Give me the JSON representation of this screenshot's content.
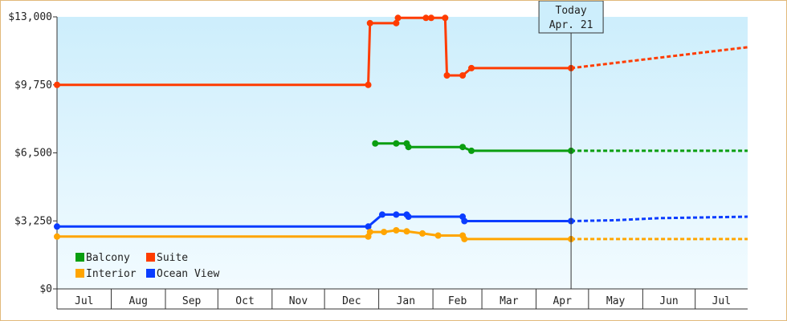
{
  "chart_data": {
    "type": "line",
    "title": "",
    "xlabel": "",
    "ylabel": "",
    "y_unit": "USD",
    "ylim": [
      0,
      13000
    ],
    "yticks": [
      {
        "value": 0,
        "label": "$0"
      },
      {
        "value": 3250,
        "label": "$3,250"
      },
      {
        "value": 6500,
        "label": "$6,500"
      },
      {
        "value": 9750,
        "label": "$9,750"
      },
      {
        "value": 13000,
        "label": "$13,000"
      }
    ],
    "x_axis": {
      "start": "2020-07-01",
      "end": "2021-07-31",
      "months": [
        {
          "label": "Jul",
          "start": "2020-07-01",
          "end": "2020-07-31"
        },
        {
          "label": "Aug",
          "start": "2020-08-01",
          "end": "2020-08-31"
        },
        {
          "label": "Sep",
          "start": "2020-09-01",
          "end": "2020-09-30"
        },
        {
          "label": "Oct",
          "start": "2020-10-01",
          "end": "2020-10-31"
        },
        {
          "label": "Nov",
          "start": "2020-11-01",
          "end": "2020-11-30"
        },
        {
          "label": "Dec",
          "start": "2020-12-01",
          "end": "2020-12-31"
        },
        {
          "label": "Jan",
          "start": "2021-01-01",
          "end": "2021-01-31"
        },
        {
          "label": "Feb",
          "start": "2021-02-01",
          "end": "2021-02-28"
        },
        {
          "label": "Mar",
          "start": "2021-03-01",
          "end": "2021-03-31"
        },
        {
          "label": "Apr",
          "start": "2021-04-01",
          "end": "2021-04-30"
        },
        {
          "label": "May",
          "start": "2021-05-01",
          "end": "2021-05-31"
        },
        {
          "label": "Jun",
          "start": "2021-06-01",
          "end": "2021-06-30"
        },
        {
          "label": "Jul",
          "start": "2021-07-01",
          "end": "2021-07-31"
        }
      ]
    },
    "today": {
      "label_line1": "Today",
      "label_line2": "Apr. 21",
      "date": "2021-04-21"
    },
    "step_lines": true,
    "legend": {
      "placement": "bottom-left"
    },
    "series": [
      {
        "name": "Suite",
        "color": "#ff3c00",
        "points": [
          [
            "2020-07-01",
            9750
          ],
          [
            "2020-12-26",
            9750
          ],
          [
            "2020-12-27",
            12700
          ],
          [
            "2021-01-11",
            12700
          ],
          [
            "2021-01-12",
            12950
          ],
          [
            "2021-01-28",
            12950
          ],
          [
            "2021-01-31",
            12950
          ],
          [
            "2021-02-08",
            12950
          ],
          [
            "2021-02-09",
            10200
          ],
          [
            "2021-02-18",
            10200
          ],
          [
            "2021-02-23",
            10550
          ],
          [
            "2021-04-21",
            10550
          ]
        ],
        "forecast": [
          [
            "2021-04-21",
            10550
          ],
          [
            "2021-07-31",
            11550
          ]
        ]
      },
      {
        "name": "Balcony",
        "color": "#0a9e10",
        "points": [
          [
            "2020-12-30",
            6950
          ],
          [
            "2021-01-11",
            6950
          ],
          [
            "2021-01-17",
            6950
          ],
          [
            "2021-01-18",
            6780
          ],
          [
            "2021-02-18",
            6780
          ],
          [
            "2021-02-23",
            6600
          ],
          [
            "2021-04-21",
            6600
          ]
        ],
        "forecast": [
          [
            "2021-04-21",
            6600
          ],
          [
            "2021-07-31",
            6600
          ]
        ]
      },
      {
        "name": "Ocean View",
        "color": "#0a3cff",
        "points": [
          [
            "2020-07-01",
            2980
          ],
          [
            "2020-12-26",
            2980
          ],
          [
            "2021-01-03",
            3550
          ],
          [
            "2021-01-11",
            3550
          ],
          [
            "2021-01-17",
            3550
          ],
          [
            "2021-01-18",
            3450
          ],
          [
            "2021-02-18",
            3450
          ],
          [
            "2021-02-19",
            3240
          ],
          [
            "2021-04-21",
            3240
          ]
        ],
        "forecast": [
          [
            "2021-04-21",
            3240
          ],
          [
            "2021-05-16",
            3280
          ],
          [
            "2021-06-10",
            3380
          ],
          [
            "2021-07-31",
            3450
          ]
        ]
      },
      {
        "name": "Interior",
        "color": "#ffa500",
        "points": [
          [
            "2020-07-01",
            2500
          ],
          [
            "2020-12-26",
            2500
          ],
          [
            "2020-12-27",
            2720
          ],
          [
            "2021-01-04",
            2720
          ],
          [
            "2021-01-11",
            2800
          ],
          [
            "2021-01-17",
            2750
          ],
          [
            "2021-01-26",
            2650
          ],
          [
            "2021-02-04",
            2550
          ],
          [
            "2021-02-18",
            2550
          ],
          [
            "2021-02-19",
            2380
          ],
          [
            "2021-04-21",
            2380
          ]
        ],
        "forecast": [
          [
            "2021-04-21",
            2380
          ],
          [
            "2021-07-31",
            2380
          ]
        ]
      }
    ],
    "legend_rows": [
      [
        "Balcony",
        "Suite"
      ],
      [
        "Interior",
        "Ocean View"
      ]
    ]
  }
}
